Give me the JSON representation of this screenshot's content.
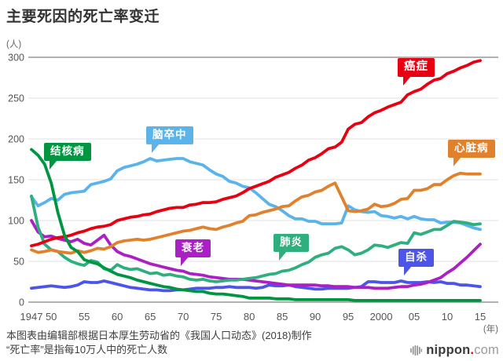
{
  "title": "主要死因的死亡率变迁",
  "y_unit_label": "(人)",
  "x_unit_label": "(年)",
  "footer": {
    "line1": "本图表由编辑部根据日本厚生劳动省的《我国人口动态》(2018)制作",
    "line2": "“死亡率”是指每10万人中的死亡人数"
  },
  "logo": {
    "name": "nippon",
    "dot": ".",
    "tld": "com"
  },
  "chart_data": {
    "type": "line",
    "title": "主要死因的死亡率变迁",
    "ylabel": "(人)",
    "xlabel": "(年)",
    "ylim": [
      0,
      300
    ],
    "y_ticks": [
      0,
      50,
      100,
      150,
      200,
      250,
      300
    ],
    "x_ticks": [
      {
        "year": 1947,
        "label": "1947"
      },
      {
        "year": 1950,
        "label": "50"
      },
      {
        "year": 1955,
        "label": "55"
      },
      {
        "year": 1960,
        "label": "60"
      },
      {
        "year": 1965,
        "label": "65"
      },
      {
        "year": 1970,
        "label": "70"
      },
      {
        "year": 1975,
        "label": "75"
      },
      {
        "year": 1980,
        "label": "80"
      },
      {
        "year": 1985,
        "label": "85"
      },
      {
        "year": 1990,
        "label": "90"
      },
      {
        "year": 1995,
        "label": "95"
      },
      {
        "year": 2000,
        "label": "2000"
      },
      {
        "year": 2005,
        "label": "05"
      },
      {
        "year": 2010,
        "label": "10"
      },
      {
        "year": 2015,
        "label": "15"
      }
    ],
    "x_start_year": 1947,
    "x_end_year": 2015,
    "grid_color_minor": "#e0e0e0",
    "grid_color_major": "#999999",
    "series": [
      {
        "name": "癌症",
        "color": "#e60012",
        "values": [
          69,
          71,
          74,
          77,
          79,
          80,
          82,
          85,
          87,
          90,
          92,
          93,
          95,
          100,
          102,
          104,
          105,
          107,
          108,
          111,
          113,
          115,
          116,
          116,
          119,
          120,
          122,
          122,
          123,
          126,
          128,
          130,
          134,
          139,
          142,
          145,
          148,
          153,
          156,
          159,
          164,
          168,
          174,
          177,
          182,
          188,
          190,
          196,
          212,
          218,
          220,
          227,
          232,
          235,
          239,
          242,
          245,
          254,
          258,
          261,
          267,
          272,
          274,
          280,
          283,
          287,
          290,
          294,
          296
        ]
      },
      {
        "name": "脑卒中",
        "color": "#5ab4ea",
        "values": [
          129,
          118,
          122,
          127,
          125,
          132,
          134,
          135,
          136,
          144,
          146,
          148,
          151,
          161,
          165,
          167,
          169,
          172,
          176,
          173,
          174,
          175,
          176,
          176,
          172,
          170,
          168,
          162,
          157,
          154,
          148,
          146,
          142,
          140,
          134,
          127,
          120,
          117,
          112,
          106,
          102,
          102,
          99,
          99,
          96,
          96,
          96,
          97,
          118,
          113,
          111,
          110,
          111,
          106,
          105,
          103,
          105,
          102,
          105,
          102,
          101,
          101,
          97,
          98,
          98,
          97,
          94,
          91,
          89
        ]
      },
      {
        "name": "心脏病",
        "color": "#e0822d",
        "values": [
          64,
          61,
          62,
          64,
          62,
          61,
          60,
          63,
          61,
          63,
          66,
          65,
          68,
          73,
          75,
          76,
          77,
          76,
          77,
          79,
          81,
          83,
          85,
          87,
          88,
          90,
          92,
          90,
          89,
          92,
          94,
          97,
          99,
          106,
          107,
          110,
          112,
          114,
          117,
          118,
          124,
          129,
          131,
          135,
          137,
          142,
          146,
          129,
          112,
          111,
          112,
          114,
          120,
          117,
          118,
          121,
          126,
          127,
          137,
          137,
          139,
          144,
          144,
          150,
          155,
          158,
          157,
          157,
          157
        ]
      },
      {
        "name": "肺炎",
        "color": "#2fae7e",
        "values": [
          130,
          92,
          71,
          64,
          62,
          55,
          50,
          47,
          45,
          51,
          49,
          41,
          39,
          46,
          42,
          40,
          41,
          38,
          35,
          36,
          33,
          34,
          32,
          31,
          28,
          27,
          28,
          26,
          25,
          26,
          27,
          27,
          28,
          29,
          30,
          32,
          34,
          35,
          38,
          39,
          42,
          46,
          49,
          55,
          58,
          60,
          66,
          68,
          64,
          58,
          60,
          64,
          70,
          69,
          67,
          70,
          73,
          72,
          85,
          83,
          86,
          89,
          89,
          94,
          99,
          98,
          97,
          95,
          96
        ]
      },
      {
        "name": "结核病",
        "color": "#009641",
        "values": [
          187,
          180,
          169,
          146,
          110,
          82,
          67,
          62,
          52,
          49,
          47,
          42,
          38,
          34,
          32,
          30,
          27,
          25,
          23,
          21,
          19,
          18,
          16,
          15,
          14,
          13,
          13,
          11,
          10,
          10,
          9,
          8,
          7,
          5,
          5,
          5,
          5,
          4,
          4,
          4,
          3,
          3,
          3,
          3,
          3,
          3,
          3,
          3,
          3,
          2,
          2,
          2,
          2,
          2,
          2,
          2,
          2,
          2,
          2,
          2,
          2,
          2,
          2,
          2,
          2,
          2,
          2,
          2,
          2
        ]
      },
      {
        "name": "衰老",
        "color": "#aa20c4",
        "values": [
          100,
          86,
          80,
          81,
          78,
          76,
          74,
          77,
          72,
          70,
          76,
          82,
          70,
          62,
          58,
          56,
          53,
          50,
          47,
          45,
          43,
          41,
          39,
          38,
          35,
          34,
          33,
          31,
          30,
          29,
          28,
          28,
          28,
          27,
          26,
          25,
          24,
          23,
          22,
          21,
          21,
          21,
          21,
          21,
          20,
          20,
          19,
          19,
          19,
          18,
          18,
          18,
          17,
          17,
          17,
          18,
          19,
          19,
          21,
          22,
          24,
          27,
          30,
          36,
          41,
          48,
          55,
          63,
          71
        ]
      },
      {
        "name": "自杀",
        "color": "#4d54e8",
        "values": [
          17,
          18,
          19,
          20,
          19,
          18,
          19,
          21,
          25,
          24,
          24,
          26,
          24,
          22,
          20,
          18,
          17,
          16,
          15,
          15,
          14,
          14,
          15,
          15,
          16,
          17,
          17,
          17,
          18,
          18,
          19,
          18,
          18,
          18,
          17,
          18,
          21,
          20,
          20,
          21,
          19,
          18,
          17,
          16,
          16,
          17,
          17,
          17,
          17,
          18,
          19,
          25,
          25,
          24,
          24,
          24,
          26,
          24,
          24,
          24,
          25,
          24,
          25,
          23,
          23,
          21,
          21,
          20,
          19
        ]
      }
    ],
    "legend_position": "inline-callouts",
    "grid": "horizontal-only"
  }
}
